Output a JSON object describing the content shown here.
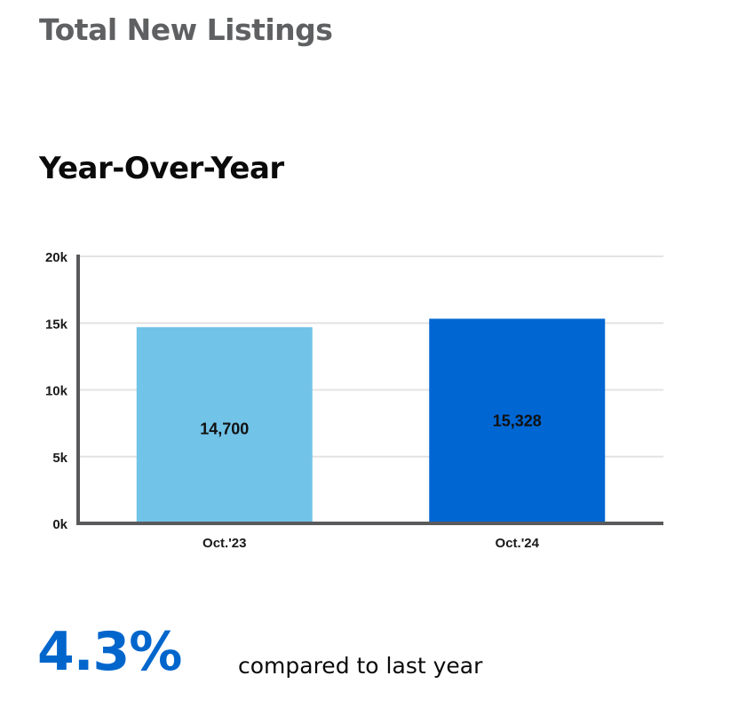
{
  "header": {
    "title": "Total New Listings",
    "subtitle": "Year-Over-Year"
  },
  "chart_data": {
    "type": "bar",
    "categories": [
      "Oct.'23",
      "Oct.'24"
    ],
    "values": [
      14700,
      15328
    ],
    "value_labels": [
      "14,700",
      "15,328"
    ],
    "bar_colors": [
      "#72c3e8",
      "#0066d2"
    ],
    "ylim": [
      0,
      20000
    ],
    "yticks": [
      0,
      5000,
      10000,
      15000,
      20000
    ],
    "ytick_labels": [
      "0k",
      "5k",
      "10k",
      "15k",
      "20k"
    ],
    "grid": true,
    "xlabel": "",
    "ylabel": ""
  },
  "summary": {
    "change": "4.3%",
    "caption": "compared to last year",
    "accent_color": "#0066cc"
  }
}
